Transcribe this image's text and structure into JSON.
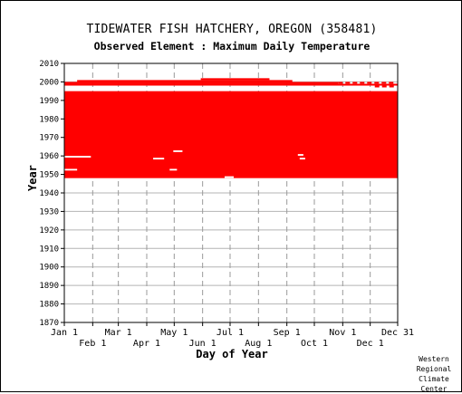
{
  "title": "TIDEWATER FISH HATCHERY, OREGON   (358481)",
  "subtitle": "Observed Element : Maximum Daily Temperature",
  "credit": [
    "Western",
    "Regional",
    "Climate",
    "Center"
  ],
  "chart_data": {
    "type": "heatmap",
    "title": "TIDEWATER FISH HATCHERY, OREGON   (358481)",
    "subtitle": "Observed Element : Maximum Daily Temperature",
    "xlabel": "Day of Year",
    "ylabel": "Year",
    "xlim": [
      1,
      365
    ],
    "ylim": [
      1870,
      2010
    ],
    "x_ticks_top_row": [
      {
        "label": "Jan 1",
        "day": 1
      },
      {
        "label": "Mar 1",
        "day": 60
      },
      {
        "label": "May 1",
        "day": 121
      },
      {
        "label": "Jul 1",
        "day": 182
      },
      {
        "label": "Sep 1",
        "day": 244
      },
      {
        "label": "Nov 1",
        "day": 305
      },
      {
        "label": "Dec 31",
        "day": 365
      }
    ],
    "x_ticks_bottom_row": [
      {
        "label": "Feb 1",
        "day": 32
      },
      {
        "label": "Apr 1",
        "day": 91
      },
      {
        "label": "Jun 1",
        "day": 152
      },
      {
        "label": "Aug 1",
        "day": 213
      },
      {
        "label": "Oct 1",
        "day": 274
      },
      {
        "label": "Dec 1",
        "day": 335
      }
    ],
    "y_ticks": [
      1870,
      1880,
      1890,
      1900,
      1910,
      1920,
      1930,
      1940,
      1950,
      1960,
      1970,
      1980,
      1990,
      2000,
      2010
    ],
    "grid": true,
    "color": "#ff0000",
    "observed_blocks": [
      {
        "year_start": 1948,
        "year_end": 1994,
        "day_start": 1,
        "day_end": 365
      },
      {
        "year_start": 1998,
        "year_end": 1998,
        "day_start": 1,
        "day_end": 365
      },
      {
        "year_start": 1999,
        "year_end": 1999,
        "day_start": 1,
        "day_end": 300
      },
      {
        "year_start": 2000,
        "year_end": 2000,
        "day_start": 15,
        "day_end": 250
      },
      {
        "year_start": 2001,
        "year_end": 2001,
        "day_start": 150,
        "day_end": 225
      }
    ],
    "sparse_segments": [
      {
        "year": 1999,
        "day_start": 300,
        "day_end": 363
      },
      {
        "year": 1997,
        "day_start": 340,
        "day_end": 363
      }
    ],
    "gaps": [
      {
        "year": 1952,
        "day_start": 1,
        "day_end": 15
      },
      {
        "year": 1959,
        "day_start": 1,
        "day_end": 30
      },
      {
        "year": 1958,
        "day_start": 98,
        "day_end": 110
      },
      {
        "year": 1962,
        "day_start": 120,
        "day_end": 130
      },
      {
        "year": 1960,
        "day_start": 256,
        "day_end": 262
      },
      {
        "year": 1958,
        "day_start": 258,
        "day_end": 264
      },
      {
        "year": 1952,
        "day_start": 116,
        "day_end": 124
      },
      {
        "year": 1948,
        "day_start": 176,
        "day_end": 186
      }
    ]
  }
}
